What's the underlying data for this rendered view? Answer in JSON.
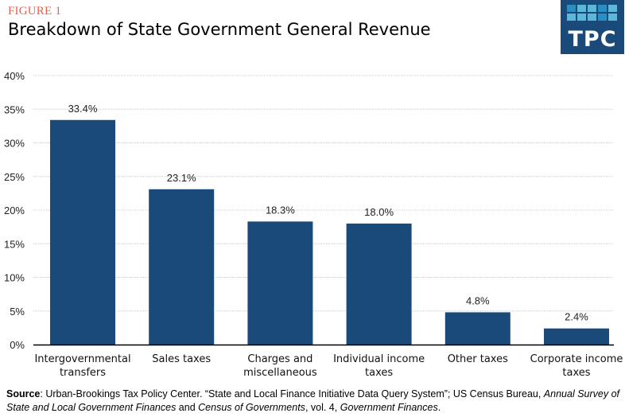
{
  "figure_label": "FIGURE 1",
  "title": "Breakdown of State Government General Revenue",
  "logo": {
    "text": "TPC",
    "colors": {
      "background": "#1a4a7a",
      "tile_light": "#5bb8d6",
      "tile_dark": "#2a8fc0"
    }
  },
  "source": {
    "label": "Source",
    "text_1": ": Urban-Brookings Tax Policy Center. “State and Local Finance Initiative Data Query System”; US Census Bureau, ",
    "italic_1": "Annual Survey of State and Local Government Finances",
    "text_2": " and ",
    "italic_2": "Census of Governments",
    "text_3": ", vol. 4, ",
    "italic_3": "Government Finances",
    "text_4": "."
  },
  "chart_data": {
    "type": "bar",
    "title": "Breakdown of State Government General Revenue",
    "xlabel": "",
    "ylabel": "",
    "categories": [
      [
        "Intergovernmental",
        "transfers"
      ],
      [
        "Sales taxes"
      ],
      [
        "Charges and",
        "miscellaneous"
      ],
      [
        "Individual income",
        "taxes"
      ],
      [
        "Other taxes"
      ],
      [
        "Corporate income",
        "taxes"
      ]
    ],
    "values": [
      33.4,
      23.1,
      18.3,
      18.0,
      4.8,
      2.4
    ],
    "data_labels": [
      "33.4%",
      "23.1%",
      "18.3%",
      "18.0%",
      "4.8%",
      "2.4%"
    ],
    "ylim": [
      0,
      40
    ],
    "yticks": [
      0,
      5,
      10,
      15,
      20,
      25,
      30,
      35,
      40
    ],
    "ytick_labels": [
      "0%",
      "5%",
      "10%",
      "15%",
      "20%",
      "25%",
      "30%",
      "35%",
      "40%"
    ],
    "grid": true,
    "legend": "none",
    "bar_color": "#1a4a7a"
  }
}
